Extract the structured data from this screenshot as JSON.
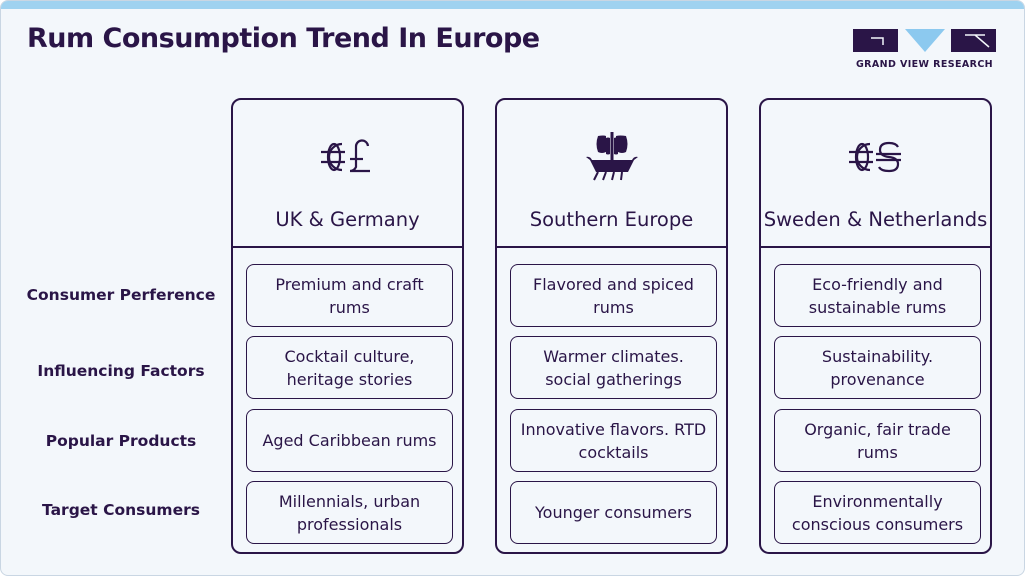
{
  "title": "Rum Consumption Trend In Europe",
  "logo": {
    "text": "GRAND VIEW RESEARCH"
  },
  "colors": {
    "accent": "#2a1547",
    "logo_blue": "#8cc9ef",
    "top_bar": "#9fd2f0",
    "background": "#f3f7fb"
  },
  "row_labels": [
    "Consumer Perference",
    "Influencing Factors",
    "Popular Products",
    "Target Consumers"
  ],
  "columns": [
    {
      "title": "UK & Germany",
      "icon": "euro-pound-icon",
      "cells": [
        "Premium and craft rums",
        "Cocktail culture, heritage stories",
        "Aged Caribbean rums",
        "Millennials, urban professionals"
      ]
    },
    {
      "title": "Southern Europe",
      "icon": "sailing-ship-icon",
      "cells": [
        "Flavored and spiced rums",
        "Warmer climates. social gatherings",
        "Innovative flavors. RTD cocktails",
        "Younger consumers"
      ]
    },
    {
      "title": "Sweden & Netherlands",
      "icon": "euro-dollar-icon",
      "cells": [
        "Eco-friendly and sustainable rums",
        "Sustainability. provenance",
        "Organic, fair trade rums",
        "Environmentally conscious consumers"
      ]
    }
  ]
}
